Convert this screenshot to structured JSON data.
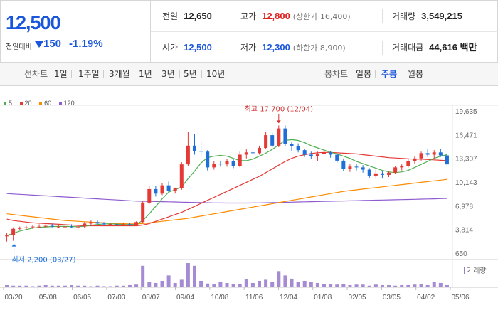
{
  "quote": {
    "price": "12,500",
    "change_label": "전일대비",
    "change": "150",
    "change_pct": "-1.19%"
  },
  "stats": {
    "prev_close": {
      "label": "전일",
      "value": "12,650"
    },
    "high": {
      "label": "고가",
      "value": "12,800",
      "sub": "(상한가 16,400)"
    },
    "volume": {
      "label": "거래량",
      "value": "3,549,215"
    },
    "open": {
      "label": "시가",
      "value": "12,500"
    },
    "low": {
      "label": "저가",
      "value": "12,300",
      "sub": "(하한가 8,900)"
    },
    "amount": {
      "label": "거래대금",
      "value": "44,616 백만"
    }
  },
  "toolbar": {
    "line_label": "선차트",
    "line_periods": [
      "1일",
      "1주일",
      "3개월",
      "1년",
      "3년",
      "5년",
      "10년"
    ],
    "candle_label": "봉차트",
    "candle_periods": [
      "일봉",
      "주봉",
      "월봉"
    ],
    "active_candle": "주봉"
  },
  "legend": [
    {
      "label": "5",
      "color": "#4caf50"
    },
    {
      "label": "20",
      "color": "#e53935"
    },
    {
      "label": "60",
      "color": "#fb8c00"
    },
    {
      "label": "120",
      "color": "#8e5ccf"
    }
  ],
  "volume_label": "거래량",
  "chart_data": {
    "type": "candlestick",
    "y_ticks": [
      "19,635",
      "16,471",
      "13,307",
      "10,143",
      "6,978",
      "3,814",
      "650"
    ],
    "ylim": [
      650,
      19635
    ],
    "x_ticks": [
      "03/20",
      "05/08",
      "06/05",
      "07/03",
      "08/07",
      "09/04",
      "10/08",
      "11/06",
      "12/04",
      "01/08",
      "02/05",
      "03/05",
      "04/02",
      "05/06"
    ],
    "annotations": {
      "high": "최고 17,700 (12/04)",
      "low": "최저 2,200 (03/27)"
    },
    "candles": [
      {
        "o": 2900,
        "h": 3300,
        "l": 2200,
        "c": 3000
      },
      {
        "o": 3100,
        "h": 4100,
        "l": 2300,
        "c": 3900
      },
      {
        "o": 3900,
        "h": 4200,
        "l": 3700,
        "c": 4000
      },
      {
        "o": 4000,
        "h": 4300,
        "l": 3800,
        "c": 4100
      },
      {
        "o": 4100,
        "h": 4400,
        "l": 3900,
        "c": 4200
      },
      {
        "o": 4200,
        "h": 4500,
        "l": 4000,
        "c": 4200
      },
      {
        "o": 4200,
        "h": 4500,
        "l": 4000,
        "c": 4300
      },
      {
        "o": 4300,
        "h": 4600,
        "l": 4100,
        "c": 4200
      },
      {
        "o": 4200,
        "h": 4500,
        "l": 4000,
        "c": 4200
      },
      {
        "o": 4200,
        "h": 4400,
        "l": 4000,
        "c": 4200
      },
      {
        "o": 4200,
        "h": 4500,
        "l": 4000,
        "c": 4100
      },
      {
        "o": 4100,
        "h": 4300,
        "l": 3900,
        "c": 4200
      },
      {
        "o": 4200,
        "h": 4800,
        "l": 4000,
        "c": 4600
      },
      {
        "o": 4600,
        "h": 5000,
        "l": 4400,
        "c": 4800
      },
      {
        "o": 4800,
        "h": 5100,
        "l": 4500,
        "c": 4600
      },
      {
        "o": 4600,
        "h": 4800,
        "l": 4400,
        "c": 4500
      },
      {
        "o": 4500,
        "h": 4700,
        "l": 4300,
        "c": 4500
      },
      {
        "o": 4500,
        "h": 4700,
        "l": 4300,
        "c": 4400
      },
      {
        "o": 4400,
        "h": 4700,
        "l": 4300,
        "c": 4500
      },
      {
        "o": 4500,
        "h": 4700,
        "l": 4300,
        "c": 4400
      },
      {
        "o": 4400,
        "h": 4900,
        "l": 4300,
        "c": 4800
      },
      {
        "o": 4800,
        "h": 7600,
        "l": 4700,
        "c": 7400
      },
      {
        "o": 7400,
        "h": 9600,
        "l": 7200,
        "c": 9200
      },
      {
        "o": 9200,
        "h": 9600,
        "l": 8200,
        "c": 8600
      },
      {
        "o": 8600,
        "h": 10000,
        "l": 8400,
        "c": 9700
      },
      {
        "o": 9700,
        "h": 10200,
        "l": 8800,
        "c": 9000
      },
      {
        "o": 9000,
        "h": 9400,
        "l": 8600,
        "c": 9300
      },
      {
        "o": 9300,
        "h": 12800,
        "l": 9100,
        "c": 12500
      },
      {
        "o": 12500,
        "h": 16800,
        "l": 12300,
        "c": 15000
      },
      {
        "o": 15000,
        "h": 16500,
        "l": 13800,
        "c": 14300
      },
      {
        "o": 14300,
        "h": 15600,
        "l": 13600,
        "c": 14200
      },
      {
        "o": 14200,
        "h": 14400,
        "l": 11700,
        "c": 12100
      },
      {
        "o": 12100,
        "h": 12900,
        "l": 11800,
        "c": 12600
      },
      {
        "o": 12600,
        "h": 13000,
        "l": 12200,
        "c": 12500
      },
      {
        "o": 12500,
        "h": 13200,
        "l": 12200,
        "c": 12900
      },
      {
        "o": 12900,
        "h": 13200,
        "l": 12000,
        "c": 12300
      },
      {
        "o": 12300,
        "h": 14200,
        "l": 12100,
        "c": 13800
      },
      {
        "o": 13800,
        "h": 14500,
        "l": 13300,
        "c": 14100
      },
      {
        "o": 14100,
        "h": 14400,
        "l": 13800,
        "c": 14000
      },
      {
        "o": 14000,
        "h": 15000,
        "l": 13800,
        "c": 14700
      },
      {
        "o": 14700,
        "h": 16800,
        "l": 14500,
        "c": 16400
      },
      {
        "o": 16400,
        "h": 16700,
        "l": 14800,
        "c": 15000
      },
      {
        "o": 15000,
        "h": 17700,
        "l": 14800,
        "c": 17300
      },
      {
        "o": 17300,
        "h": 17700,
        "l": 14900,
        "c": 15200
      },
      {
        "o": 15200,
        "h": 15500,
        "l": 14300,
        "c": 14900
      },
      {
        "o": 14900,
        "h": 15300,
        "l": 14100,
        "c": 14400
      },
      {
        "o": 14400,
        "h": 14600,
        "l": 13500,
        "c": 13800
      },
      {
        "o": 13800,
        "h": 14200,
        "l": 13200,
        "c": 13600
      },
      {
        "o": 13600,
        "h": 14200,
        "l": 12900,
        "c": 13900
      },
      {
        "o": 13900,
        "h": 14600,
        "l": 13500,
        "c": 14100
      },
      {
        "o": 14100,
        "h": 14300,
        "l": 13400,
        "c": 13800
      },
      {
        "o": 13800,
        "h": 14000,
        "l": 12700,
        "c": 13000
      },
      {
        "o": 13000,
        "h": 13300,
        "l": 11600,
        "c": 11900
      },
      {
        "o": 11900,
        "h": 12500,
        "l": 11500,
        "c": 12200
      },
      {
        "o": 12200,
        "h": 12600,
        "l": 11700,
        "c": 12100
      },
      {
        "o": 12100,
        "h": 12400,
        "l": 11400,
        "c": 11800
      },
      {
        "o": 11800,
        "h": 12000,
        "l": 10700,
        "c": 11000
      },
      {
        "o": 11000,
        "h": 11800,
        "l": 10600,
        "c": 11300
      },
      {
        "o": 11300,
        "h": 11600,
        "l": 10600,
        "c": 11100
      },
      {
        "o": 11100,
        "h": 11600,
        "l": 10800,
        "c": 11400
      },
      {
        "o": 11400,
        "h": 12300,
        "l": 11200,
        "c": 12100
      },
      {
        "o": 12100,
        "h": 12500,
        "l": 11700,
        "c": 12300
      },
      {
        "o": 12300,
        "h": 13200,
        "l": 12100,
        "c": 12900
      },
      {
        "o": 12900,
        "h": 13600,
        "l": 12600,
        "c": 13300
      },
      {
        "o": 13300,
        "h": 14200,
        "l": 13000,
        "c": 14000
      },
      {
        "o": 14000,
        "h": 14500,
        "l": 13500,
        "c": 13800
      },
      {
        "o": 13800,
        "h": 14400,
        "l": 13300,
        "c": 14100
      },
      {
        "o": 14100,
        "h": 14600,
        "l": 13500,
        "c": 13700
      },
      {
        "o": 13700,
        "h": 14300,
        "l": 12300,
        "c": 12500
      }
    ],
    "ma": {
      "5": [
        3000,
        3300,
        3600,
        3800,
        4000,
        4100,
        4150,
        4200,
        4220,
        4220,
        4200,
        4180,
        4250,
        4380,
        4480,
        4550,
        4560,
        4520,
        4480,
        4460,
        4500,
        5000,
        5900,
        6900,
        7900,
        8800,
        9100,
        9500,
        10600,
        11600,
        12700,
        13400,
        13600,
        13700,
        13600,
        13300,
        13000,
        13000,
        13200,
        13600,
        14000,
        14500,
        15100,
        15700,
        15800,
        15700,
        15400,
        15000,
        14700,
        14400,
        14100,
        13900,
        13600,
        13300,
        12900,
        12600,
        12300,
        12000,
        11700,
        11500,
        11400,
        11500,
        11700,
        12100,
        12500,
        12900,
        13300,
        13600,
        13800
      ],
      "20": [
        5200,
        5000,
        4900,
        4800,
        4700,
        4650,
        4600,
        4550,
        4500,
        4450,
        4400,
        4350,
        4300,
        4300,
        4300,
        4300,
        4300,
        4300,
        4300,
        4300,
        4300,
        4400,
        4600,
        4900,
        5200,
        5500,
        5800,
        6100,
        6500,
        6900,
        7300,
        7700,
        8100,
        8500,
        8900,
        9300,
        9700,
        10100,
        10500,
        10900,
        11400,
        11900,
        12400,
        12900,
        13300,
        13600,
        13800,
        13950,
        14050,
        14100,
        14100,
        14050,
        14000,
        13950,
        13900,
        13800,
        13700,
        13600,
        13500,
        13400,
        13350,
        13300,
        13250,
        13200,
        13200,
        13150,
        13100,
        13050,
        13000
      ],
      "60": [
        5900,
        5800,
        5700,
        5600,
        5500,
        5400,
        5300,
        5200,
        5100,
        5000,
        4950,
        4900,
        4850,
        4800,
        4750,
        4700,
        4650,
        4600,
        4580,
        4560,
        4550,
        4600,
        4700,
        4800,
        4900,
        5000,
        5100,
        5200,
        5300,
        5450,
        5600,
        5750,
        5900,
        6050,
        6200,
        6350,
        6500,
        6650,
        6800,
        6950,
        7100,
        7250,
        7400,
        7550,
        7700,
        7850,
        8000,
        8150,
        8300,
        8450,
        8600,
        8750,
        8900,
        9000,
        9100,
        9200,
        9300,
        9400,
        9500,
        9600,
        9700,
        9800,
        9900,
        10000,
        10100,
        10200,
        10300,
        10400,
        10500
      ],
      "120": [
        8600,
        8550,
        8500,
        8450,
        8400,
        8350,
        8300,
        8250,
        8200,
        8150,
        8100,
        8050,
        8000,
        7950,
        7900,
        7850,
        7800,
        7750,
        7700,
        7650,
        7600,
        7580,
        7560,
        7540,
        7520,
        7500,
        7480,
        7460,
        7440,
        7420,
        7400,
        7380,
        7360,
        7350,
        7340,
        7340,
        7340,
        7340,
        7350,
        7360,
        7380,
        7400,
        7420,
        7440,
        7460,
        7480,
        7500,
        7520,
        7540,
        7560,
        7580,
        7600,
        7620,
        7640,
        7660,
        7680,
        7700,
        7720,
        7740,
        7760,
        7780,
        7800,
        7820,
        7840,
        7860,
        7880,
        7900,
        7930,
        7960
      ]
    },
    "volume": [
      4,
      3,
      3,
      3,
      2,
      3,
      4,
      3,
      3,
      3,
      4,
      3,
      3,
      2,
      3,
      2,
      2,
      3,
      3,
      4,
      5,
      40,
      10,
      8,
      12,
      22,
      8,
      14,
      45,
      40,
      12,
      7,
      6,
      10,
      8,
      6,
      6,
      15,
      8,
      12,
      14,
      10,
      30,
      22,
      16,
      10,
      12,
      10,
      8,
      6,
      6,
      5,
      6,
      4,
      5,
      5,
      3,
      5,
      4,
      4,
      3,
      4,
      4,
      5,
      6,
      4,
      10,
      8,
      4
    ]
  }
}
